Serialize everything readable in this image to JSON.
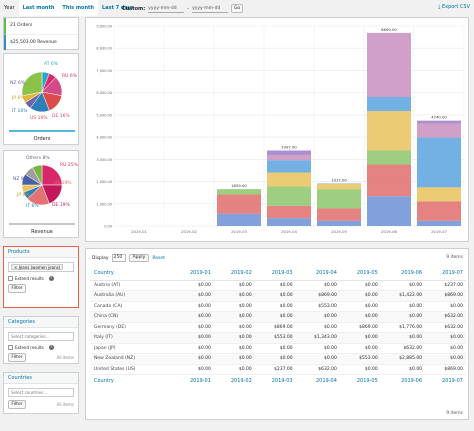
{
  "topbar": {
    "tabs": [
      "Year",
      "Last month",
      "This month",
      "Last 7 days"
    ],
    "custom_label": "Custom:",
    "date_from_placeholder": "yyyy-mm-dd",
    "date_separator": "-",
    "date_to_placeholder": "yyyy-mm-dd",
    "go_label": "Go",
    "export_label": "Export CSV"
  },
  "summary": {
    "orders": "21 Orders",
    "revenue": "$25,503.00 Revenue"
  },
  "pie_orders": {
    "title": "Orders",
    "labels": [
      "AT 6%",
      "RU 6%",
      "NZ 6%",
      "IT 16%",
      "US 16%",
      "DE 16%",
      "JP 6%"
    ],
    "slices": [
      {
        "label": "AT",
        "value": 6,
        "color": "#2aa6c7"
      },
      {
        "label": "RU",
        "value": 6,
        "color": "#d9286a"
      },
      {
        "label": "DE",
        "value": 16,
        "color": "#d34b86"
      },
      {
        "label": "US",
        "value": 16,
        "color": "#dc4a4a"
      },
      {
        "label": "IT",
        "value": 16,
        "color": "#2e7fb8"
      },
      {
        "label": "NZ",
        "value": 6,
        "color": "#6f62a8"
      },
      {
        "label": "JP",
        "value": 6,
        "color": "#e0b93a"
      },
      {
        "label": "other",
        "value": 28,
        "color": "#8bc34a"
      }
    ]
  },
  "pie_revenue": {
    "title": "Revenue",
    "labels": [
      "Others 8%",
      "RU 25%",
      "NZ 9%",
      "US 19%",
      "JP 6%",
      "IT 6%",
      "DE 19%"
    ],
    "slices": [
      {
        "label": "RU",
        "value": 25,
        "color": "#d9286a"
      },
      {
        "label": "DE",
        "value": 19,
        "color": "#c2185b"
      },
      {
        "label": "US",
        "value": 19,
        "color": "#e57373"
      },
      {
        "label": "IT",
        "value": 6,
        "color": "#2e7fb8"
      },
      {
        "label": "JP",
        "value": 6,
        "color": "#e8c25a"
      },
      {
        "label": "NZ",
        "value": 9,
        "color": "#4a5fa8"
      },
      {
        "label": "Others",
        "value": 8,
        "color": "#9e9e9e"
      },
      {
        "label": "other2",
        "value": 8,
        "color": "#7cb342"
      }
    ]
  },
  "filters": {
    "products": {
      "title": "Products",
      "tag": "× Jeans (women jeans)",
      "extend_label": "Extend results",
      "help": "?",
      "filter_label": "Filter"
    },
    "categories": {
      "title": "Categories",
      "placeholder": "Select categories...",
      "extend_label": "Extend results",
      "help": "?",
      "filter_label": "Filter",
      "alt": "All items"
    },
    "countries": {
      "title": "Countries",
      "placeholder": "Select countries...",
      "filter_label": "Filter",
      "alt": "All items"
    }
  },
  "chart_data": {
    "type": "bar",
    "stacked": true,
    "categories": [
      "2019-01",
      "2019-02",
      "2019-03",
      "2019-04",
      "2019-05",
      "2019-06",
      "2019-07"
    ],
    "totals": [
      0,
      0,
      1659,
      3397,
      1917,
      8690,
      4740
    ],
    "total_labels": [
      "",
      "",
      "1659.00",
      "3397.00",
      "1917.00",
      "8690.00",
      "4740.00"
    ],
    "ylim": [
      0,
      9000
    ],
    "yticks": [
      "0.00",
      "1,000.00",
      "2,000.00",
      "3,000.00",
      "4,000.00",
      "5,000.00",
      "6,000.00",
      "7,000.00",
      "8,000.00",
      "9,000.00"
    ],
    "series": [
      {
        "values": [
          0,
          0,
          553,
          353,
          237,
          1343,
          237
        ],
        "color": "#6b8fd6"
      },
      {
        "values": [
          0,
          0,
          869,
          553,
          553,
          1422,
          869
        ],
        "color": "#e06c6c"
      },
      {
        "values": [
          0,
          0,
          237,
          869,
          869,
          632,
          0
        ],
        "color": "#8cc56b"
      },
      {
        "values": [
          0,
          0,
          0,
          632,
          237,
          1776,
          632
        ],
        "color": "#e8c25a"
      },
      {
        "values": [
          0,
          0,
          0,
          553,
          21,
          632,
          2240
        ],
        "color": "#5ba3e0"
      },
      {
        "values": [
          0,
          0,
          0,
          237,
          0,
          2885,
          632
        ],
        "color": "#c98fc0"
      },
      {
        "values": [
          0,
          0,
          0,
          200,
          0,
          0,
          130
        ],
        "color": "#9c7dc8"
      }
    ],
    "grid": true
  },
  "table": {
    "display_label": "Display",
    "display_value": "250",
    "apply_label": "Apply",
    "reset_label": "Reset",
    "items_label": "9 items",
    "headers": [
      "Country",
      "2019-01",
      "2019-02",
      "2019-03",
      "2019-04",
      "2019-05",
      "2019-06",
      "2019-07"
    ],
    "rows": [
      [
        "Austria (AT)",
        "$0.00",
        "$0.00",
        "$0.00",
        "$0.00",
        "$0.00",
        "$0.00",
        "$237.00"
      ],
      [
        "Australia (AU)",
        "$0.00",
        "$0.00",
        "$0.00",
        "$869.00",
        "$0.00",
        "$1,422.00",
        "$869.00"
      ],
      [
        "Canada (CA)",
        "$0.00",
        "$0.00",
        "$0.00",
        "$553.00",
        "$0.00",
        "$0.00",
        "$0.00"
      ],
      [
        "China (CN)",
        "$0.00",
        "$0.00",
        "$0.00",
        "$0.00",
        "$0.00",
        "$0.00",
        "$632.00"
      ],
      [
        "Germany (DE)",
        "$0.00",
        "$0.00",
        "$869.00",
        "$0.00",
        "$869.00",
        "$1,776.00",
        "$632.00"
      ],
      [
        "Italy (IT)",
        "$0.00",
        "$0.00",
        "$553.00",
        "$1,343.00",
        "$0.00",
        "$0.00",
        "$0.00"
      ],
      [
        "Japan (JP)",
        "$0.00",
        "$0.00",
        "$0.00",
        "$0.00",
        "$0.00",
        "$632.00",
        "$0.00"
      ],
      [
        "New Zealand (NZ)",
        "$0.00",
        "$0.00",
        "$0.00",
        "$0.00",
        "$553.00",
        "$2,885.00",
        "$0.00"
      ],
      [
        "United States (US)",
        "$0.00",
        "$0.00",
        "$237.00",
        "$632.00",
        "$0.00",
        "$0.00",
        "$869.00"
      ]
    ]
  }
}
